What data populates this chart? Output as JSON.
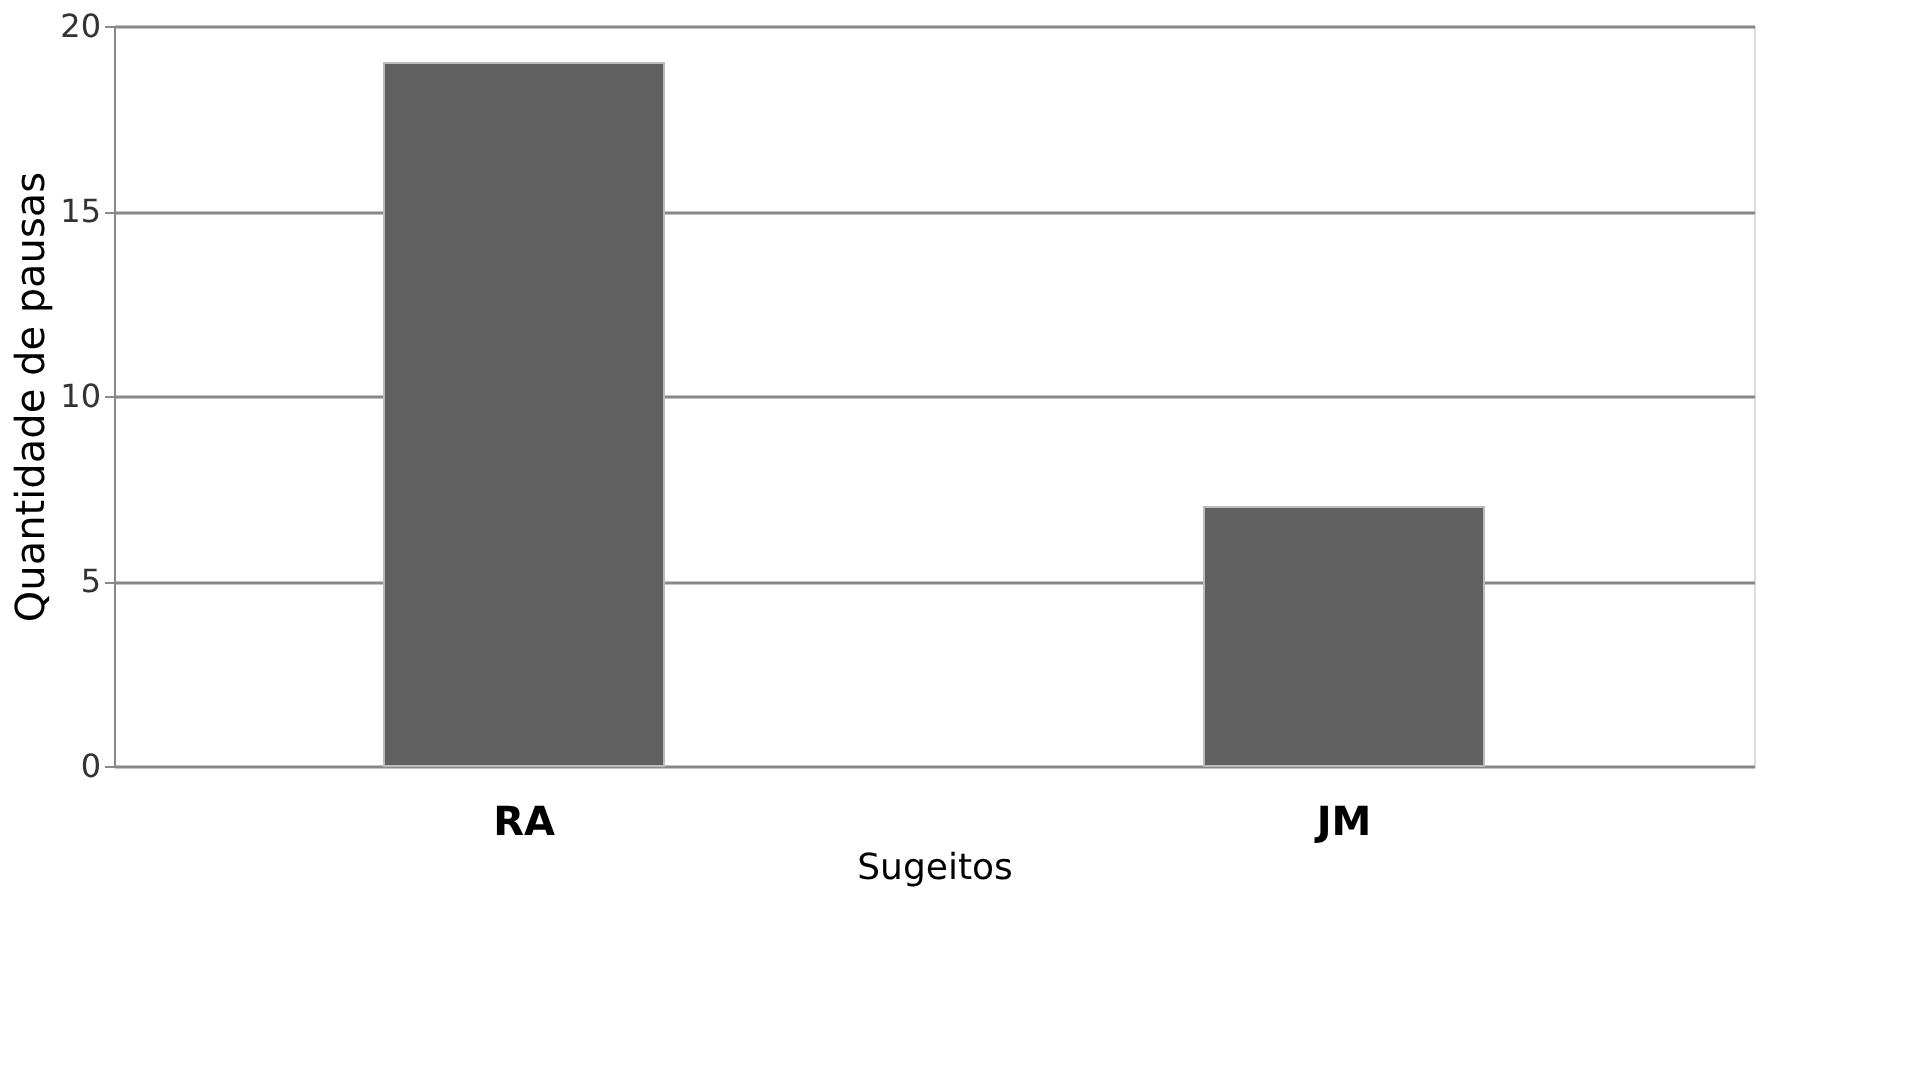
{
  "chart_data": {
    "type": "bar",
    "xlabel": "Sugeitos",
    "ylabel": "Quantidade de pausas",
    "categories": [
      "RA",
      "JM"
    ],
    "values": [
      19,
      7
    ],
    "color": "#5f605f",
    "ylim": [
      0,
      20
    ],
    "yticks": [
      0,
      5,
      10,
      15,
      20
    ],
    "grid": "y"
  }
}
